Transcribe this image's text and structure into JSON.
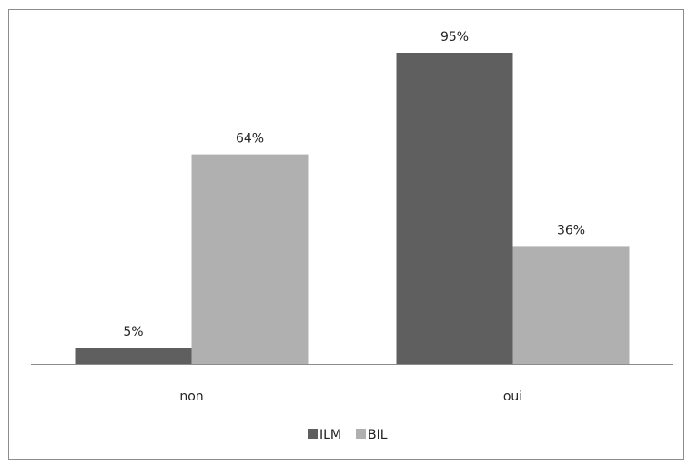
{
  "chart_data": {
    "type": "bar",
    "categories": [
      "non",
      "oui"
    ],
    "series": [
      {
        "name": "ILM",
        "values": [
          5,
          95
        ],
        "labels": [
          "5%",
          "95%"
        ],
        "color": "#5f5f5f"
      },
      {
        "name": "BIL",
        "values": [
          64,
          36
        ],
        "labels": [
          "64%",
          "36%"
        ],
        "color": "#b0b0b0"
      }
    ],
    "unit": "%",
    "title": "",
    "xlabel": "",
    "ylabel": "",
    "ylim": [
      0,
      100
    ],
    "grid": false,
    "legend_position": "bottom"
  }
}
